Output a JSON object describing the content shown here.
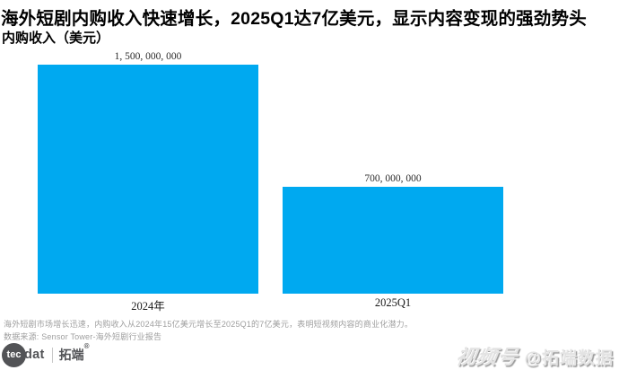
{
  "title": "海外短剧内购收入快速增长，2025Q1达7亿美元，显示内容变现的强劲势头",
  "subtitle": "内购收入（美元）",
  "chart_data": {
    "type": "bar",
    "categories": [
      "2024年",
      "2025Q1"
    ],
    "values": [
      1500000000,
      700000000
    ],
    "value_labels": [
      "1, 500, 000, 000",
      "700, 000, 000"
    ],
    "series_name": "内购收入",
    "title": "海外短剧内购收入快速增长，2025Q1达7亿美元，显示内容变现的强劲势头",
    "xlabel": "",
    "ylabel": "内购收入（美元）",
    "ylim": [
      0,
      1500000000
    ],
    "grid": false,
    "legend": false,
    "bar_color": "#00A9F0"
  },
  "footer": {
    "note": "海外短剧市场增长迅速，内购收入从2024年15亿美元增长至2025Q1的7亿美元，表明短视频内容的商业化潜力。",
    "source": "数据来源: Sensor Tower-海外短剧行业报告"
  },
  "branding": {
    "logo_circle_text": "tec",
    "logo_text": "dat",
    "logo_cn": "拓端",
    "logo_reg": "®",
    "watermark_channel": "视频号",
    "watermark_account": "@拓端数据"
  },
  "colors": {
    "bar": "#00A9F0",
    "footer_text": "#9e9e9e",
    "logo_dark": "#525356"
  }
}
